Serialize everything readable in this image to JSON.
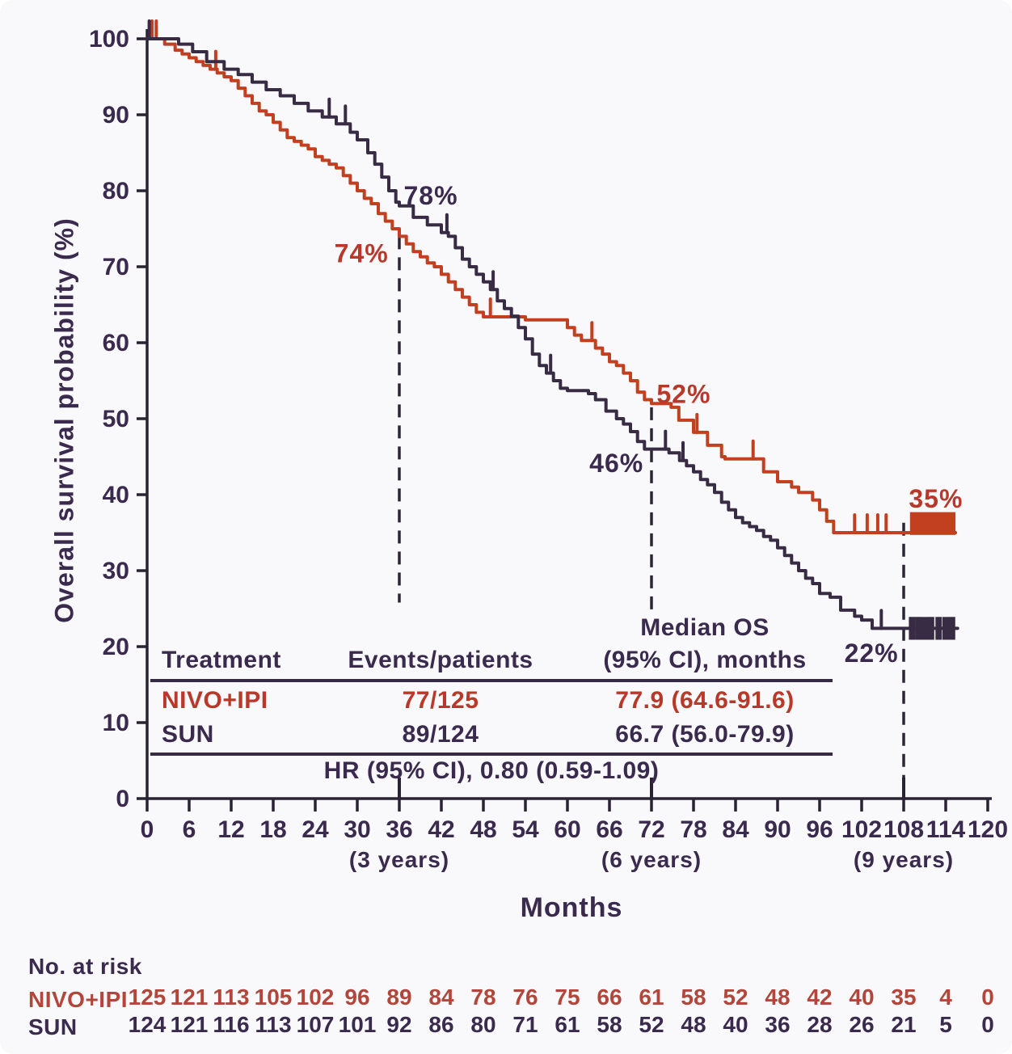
{
  "colors": {
    "red_line": "#c2401f",
    "red_text": "#b8392a",
    "red_risk": "#b2463a",
    "dark_line": "#382c44",
    "dark_text": "#3a2b4e",
    "axis": "#2a2333",
    "background": "#f9f8fb"
  },
  "chart_data": {
    "type": "line",
    "subtype": "kaplan-meier-step",
    "xlabel": "Months",
    "ylabel": "Overall survival probability (%)",
    "xlim": [
      0,
      120
    ],
    "ylim": [
      0,
      100
    ],
    "x_ticks": [
      0,
      6,
      12,
      18,
      24,
      30,
      36,
      42,
      48,
      54,
      60,
      66,
      72,
      78,
      84,
      90,
      96,
      102,
      108,
      114,
      120
    ],
    "y_ticks": [
      0,
      10,
      20,
      30,
      40,
      50,
      60,
      70,
      80,
      90,
      100
    ],
    "major_x_ticks": [
      36,
      72,
      108
    ],
    "year_labels": [
      {
        "month": 36,
        "text": "(3 years)"
      },
      {
        "month": 72,
        "text": "(6 years)"
      },
      {
        "month": 108,
        "text": "(9 years)"
      }
    ],
    "dashed_lines": [
      {
        "month": 36,
        "from_pct": 74,
        "to_pct": 25.8
      },
      {
        "month": 72,
        "from_pct": 51.5,
        "to_pct": 24.8
      },
      {
        "month": 108,
        "from_pct": 36.3,
        "to_pct": 0.3
      }
    ],
    "series": [
      {
        "name": "NIVO+IPI",
        "color": "#c2401f",
        "steps": [
          [
            0,
            100
          ],
          [
            2.5,
            99.3
          ],
          [
            4,
            98.5
          ],
          [
            5,
            98
          ],
          [
            6,
            97.5
          ],
          [
            7,
            97
          ],
          [
            8,
            96.5
          ],
          [
            9,
            96
          ],
          [
            10,
            95.5
          ],
          [
            11,
            95
          ],
          [
            12,
            94.5
          ],
          [
            13,
            93.5
          ],
          [
            14,
            92.5
          ],
          [
            15,
            91.5
          ],
          [
            16,
            90.5
          ],
          [
            17,
            90
          ],
          [
            18,
            89
          ],
          [
            19,
            88
          ],
          [
            20,
            87
          ],
          [
            21,
            86.5
          ],
          [
            22,
            86
          ],
          [
            23,
            85.5
          ],
          [
            24,
            84.5
          ],
          [
            25,
            84
          ],
          [
            26,
            83.5
          ],
          [
            27,
            83
          ],
          [
            28,
            82
          ],
          [
            29,
            81
          ],
          [
            30,
            80
          ],
          [
            31,
            79
          ],
          [
            32,
            78.3
          ],
          [
            33,
            77
          ],
          [
            34,
            76
          ],
          [
            35,
            75
          ],
          [
            36,
            74
          ],
          [
            37,
            73
          ],
          [
            38,
            72
          ],
          [
            39,
            71.3
          ],
          [
            40,
            70.5
          ],
          [
            41,
            70
          ],
          [
            42,
            69
          ],
          [
            43,
            68
          ],
          [
            44,
            67
          ],
          [
            45,
            66
          ],
          [
            46,
            65
          ],
          [
            47,
            64
          ],
          [
            48,
            63.4
          ],
          [
            54,
            63
          ],
          [
            60,
            62
          ],
          [
            61,
            61
          ],
          [
            62,
            60.3
          ],
          [
            64,
            59.3
          ],
          [
            65,
            58.5
          ],
          [
            66,
            57.5
          ],
          [
            67,
            57
          ],
          [
            68,
            56
          ],
          [
            69,
            55
          ],
          [
            70,
            53.5
          ],
          [
            71,
            52.5
          ],
          [
            72,
            52
          ],
          [
            74.8,
            51.5
          ],
          [
            75.9,
            49.8
          ],
          [
            78,
            48.2
          ],
          [
            80,
            46.5
          ],
          [
            82,
            45
          ],
          [
            82.5,
            44.7
          ],
          [
            88,
            43
          ],
          [
            90,
            41.7
          ],
          [
            92,
            41
          ],
          [
            93,
            40.3
          ],
          [
            95,
            39.3
          ],
          [
            96,
            38
          ],
          [
            97,
            36.5
          ],
          [
            98,
            35
          ],
          [
            115.4,
            35
          ]
        ],
        "censors": [
          [
            0.7,
            100
          ],
          [
            1.3,
            100
          ],
          [
            9.8,
            96
          ],
          [
            49,
            63.4
          ],
          [
            63.5,
            60.3
          ],
          [
            78.5,
            48.2
          ],
          [
            86.5,
            44.7
          ],
          [
            101,
            35
          ],
          [
            102.8,
            35
          ],
          [
            104.3,
            35
          ],
          [
            105.5,
            35
          ]
        ],
        "end_block": {
          "from_month": 108.9,
          "to_month": 115.4,
          "top_pct": 37.7,
          "bottom_pct": 34.7
        },
        "landmark_values": {
          "36": "74%",
          "72": "52%",
          "108": "35%"
        }
      },
      {
        "name": "SUN",
        "color": "#382c44",
        "steps": [
          [
            0,
            100
          ],
          [
            4.5,
            99.3
          ],
          [
            6.5,
            98.3
          ],
          [
            8.5,
            97
          ],
          [
            11,
            96
          ],
          [
            13,
            95.3
          ],
          [
            15,
            94.3
          ],
          [
            17,
            93.3
          ],
          [
            19,
            92.5
          ],
          [
            21,
            91.5
          ],
          [
            23,
            90.5
          ],
          [
            25,
            89.7
          ],
          [
            27,
            88.8
          ],
          [
            29,
            87.7
          ],
          [
            30,
            86.7
          ],
          [
            31.5,
            85
          ],
          [
            32.5,
            83.5
          ],
          [
            33.5,
            81.8
          ],
          [
            34.5,
            80
          ],
          [
            35.5,
            78.5
          ],
          [
            36,
            78
          ],
          [
            38,
            76.5
          ],
          [
            40,
            75.5
          ],
          [
            42,
            74.5
          ],
          [
            43,
            74
          ],
          [
            44,
            72.5
          ],
          [
            45,
            71
          ],
          [
            46,
            70
          ],
          [
            47,
            69
          ],
          [
            48,
            68
          ],
          [
            49,
            67
          ],
          [
            50,
            65.5
          ],
          [
            51,
            64.5
          ],
          [
            52,
            63.5
          ],
          [
            53,
            62
          ],
          [
            54,
            60.5
          ],
          [
            55,
            58.5
          ],
          [
            56,
            57
          ],
          [
            57,
            56
          ],
          [
            58,
            55
          ],
          [
            59,
            54
          ],
          [
            60,
            53.7
          ],
          [
            63,
            53.3
          ],
          [
            64,
            52.5
          ],
          [
            65.5,
            51
          ],
          [
            67,
            50
          ],
          [
            68,
            49.3
          ],
          [
            69,
            48.3
          ],
          [
            70,
            47
          ],
          [
            71,
            46
          ],
          [
            74.5,
            45.5
          ],
          [
            76,
            44.5
          ],
          [
            77,
            43.8
          ],
          [
            78,
            43
          ],
          [
            79,
            42
          ],
          [
            80,
            41.3
          ],
          [
            81,
            40.3
          ],
          [
            82,
            39
          ],
          [
            83,
            38
          ],
          [
            84,
            37
          ],
          [
            85,
            36.3
          ],
          [
            86,
            35.8
          ],
          [
            87,
            35.3
          ],
          [
            88,
            34.5
          ],
          [
            89,
            34
          ],
          [
            90,
            33
          ],
          [
            91,
            32
          ],
          [
            92,
            31
          ],
          [
            93,
            30
          ],
          [
            94,
            29
          ],
          [
            95,
            28.3
          ],
          [
            96,
            27
          ],
          [
            97.5,
            26.5
          ],
          [
            99,
            24.8
          ],
          [
            101,
            24
          ],
          [
            102,
            23.5
          ],
          [
            103.5,
            22.4
          ],
          [
            115.7,
            22.4
          ]
        ],
        "censors": [
          [
            0.3,
            100
          ],
          [
            26,
            89.7
          ],
          [
            28.3,
            88.8
          ],
          [
            42.8,
            74.5
          ],
          [
            49.4,
            67
          ],
          [
            57.6,
            56
          ],
          [
            74,
            46
          ],
          [
            76.5,
            44.5
          ],
          [
            104.8,
            22.4
          ]
        ],
        "end_cluster": {
          "months": [
            109.2,
            110.1,
            111.0,
            111.9,
            113.0,
            114.0,
            114.9
          ],
          "center_pct": 22.4,
          "half_pct": 1.5
        },
        "landmark_values": {
          "36": "78%",
          "72": "46%",
          "108": "22%"
        }
      }
    ],
    "landmark_annotations": [
      {
        "text": "78%",
        "month": 40.5,
        "pct": 78.2,
        "series": "SUN"
      },
      {
        "text": "74%",
        "month": 30.6,
        "pct": 70.6,
        "series": "NIVO+IPI"
      },
      {
        "text": "52%",
        "month": 76.6,
        "pct": 52.1,
        "series": "NIVO+IPI"
      },
      {
        "text": "46%",
        "month": 67.0,
        "pct": 43.0,
        "series": "SUN"
      },
      {
        "text": "35%",
        "month": 112.6,
        "pct": 38.3,
        "series": "NIVO+IPI"
      },
      {
        "text": "22%",
        "month": 103.4,
        "pct": 18.0,
        "series": "SUN"
      }
    ]
  },
  "stats_table": {
    "headers": {
      "treatment": "Treatment",
      "events": "Events/patients",
      "median_line1": "Median OS",
      "median_line2": "(95% CI), months"
    },
    "rows": [
      {
        "treatment": "NIVO+IPI",
        "events": "77/125",
        "median": "77.9 (64.6-91.6)",
        "color": "red"
      },
      {
        "treatment": "SUN",
        "events": "89/124",
        "median": "66.7 (56.0-79.9)",
        "color": "dark"
      }
    ],
    "footer": "HR (95% CI), 0.80 (0.59-1.09)"
  },
  "risk_table": {
    "title": "No. at risk",
    "months": [
      0,
      6,
      12,
      18,
      24,
      30,
      36,
      42,
      48,
      54,
      60,
      66,
      72,
      78,
      84,
      90,
      96,
      102,
      108,
      114,
      120
    ],
    "rows": [
      {
        "label": "NIVO+IPI",
        "color": "red",
        "values": [
          125,
          121,
          113,
          105,
          102,
          96,
          89,
          84,
          78,
          76,
          75,
          66,
          61,
          58,
          52,
          48,
          42,
          40,
          35,
          4,
          0
        ]
      },
      {
        "label": "SUN",
        "color": "dark",
        "values": [
          124,
          121,
          116,
          113,
          107,
          101,
          92,
          86,
          80,
          71,
          61,
          58,
          52,
          48,
          40,
          36,
          28,
          26,
          21,
          5,
          0
        ]
      }
    ]
  }
}
